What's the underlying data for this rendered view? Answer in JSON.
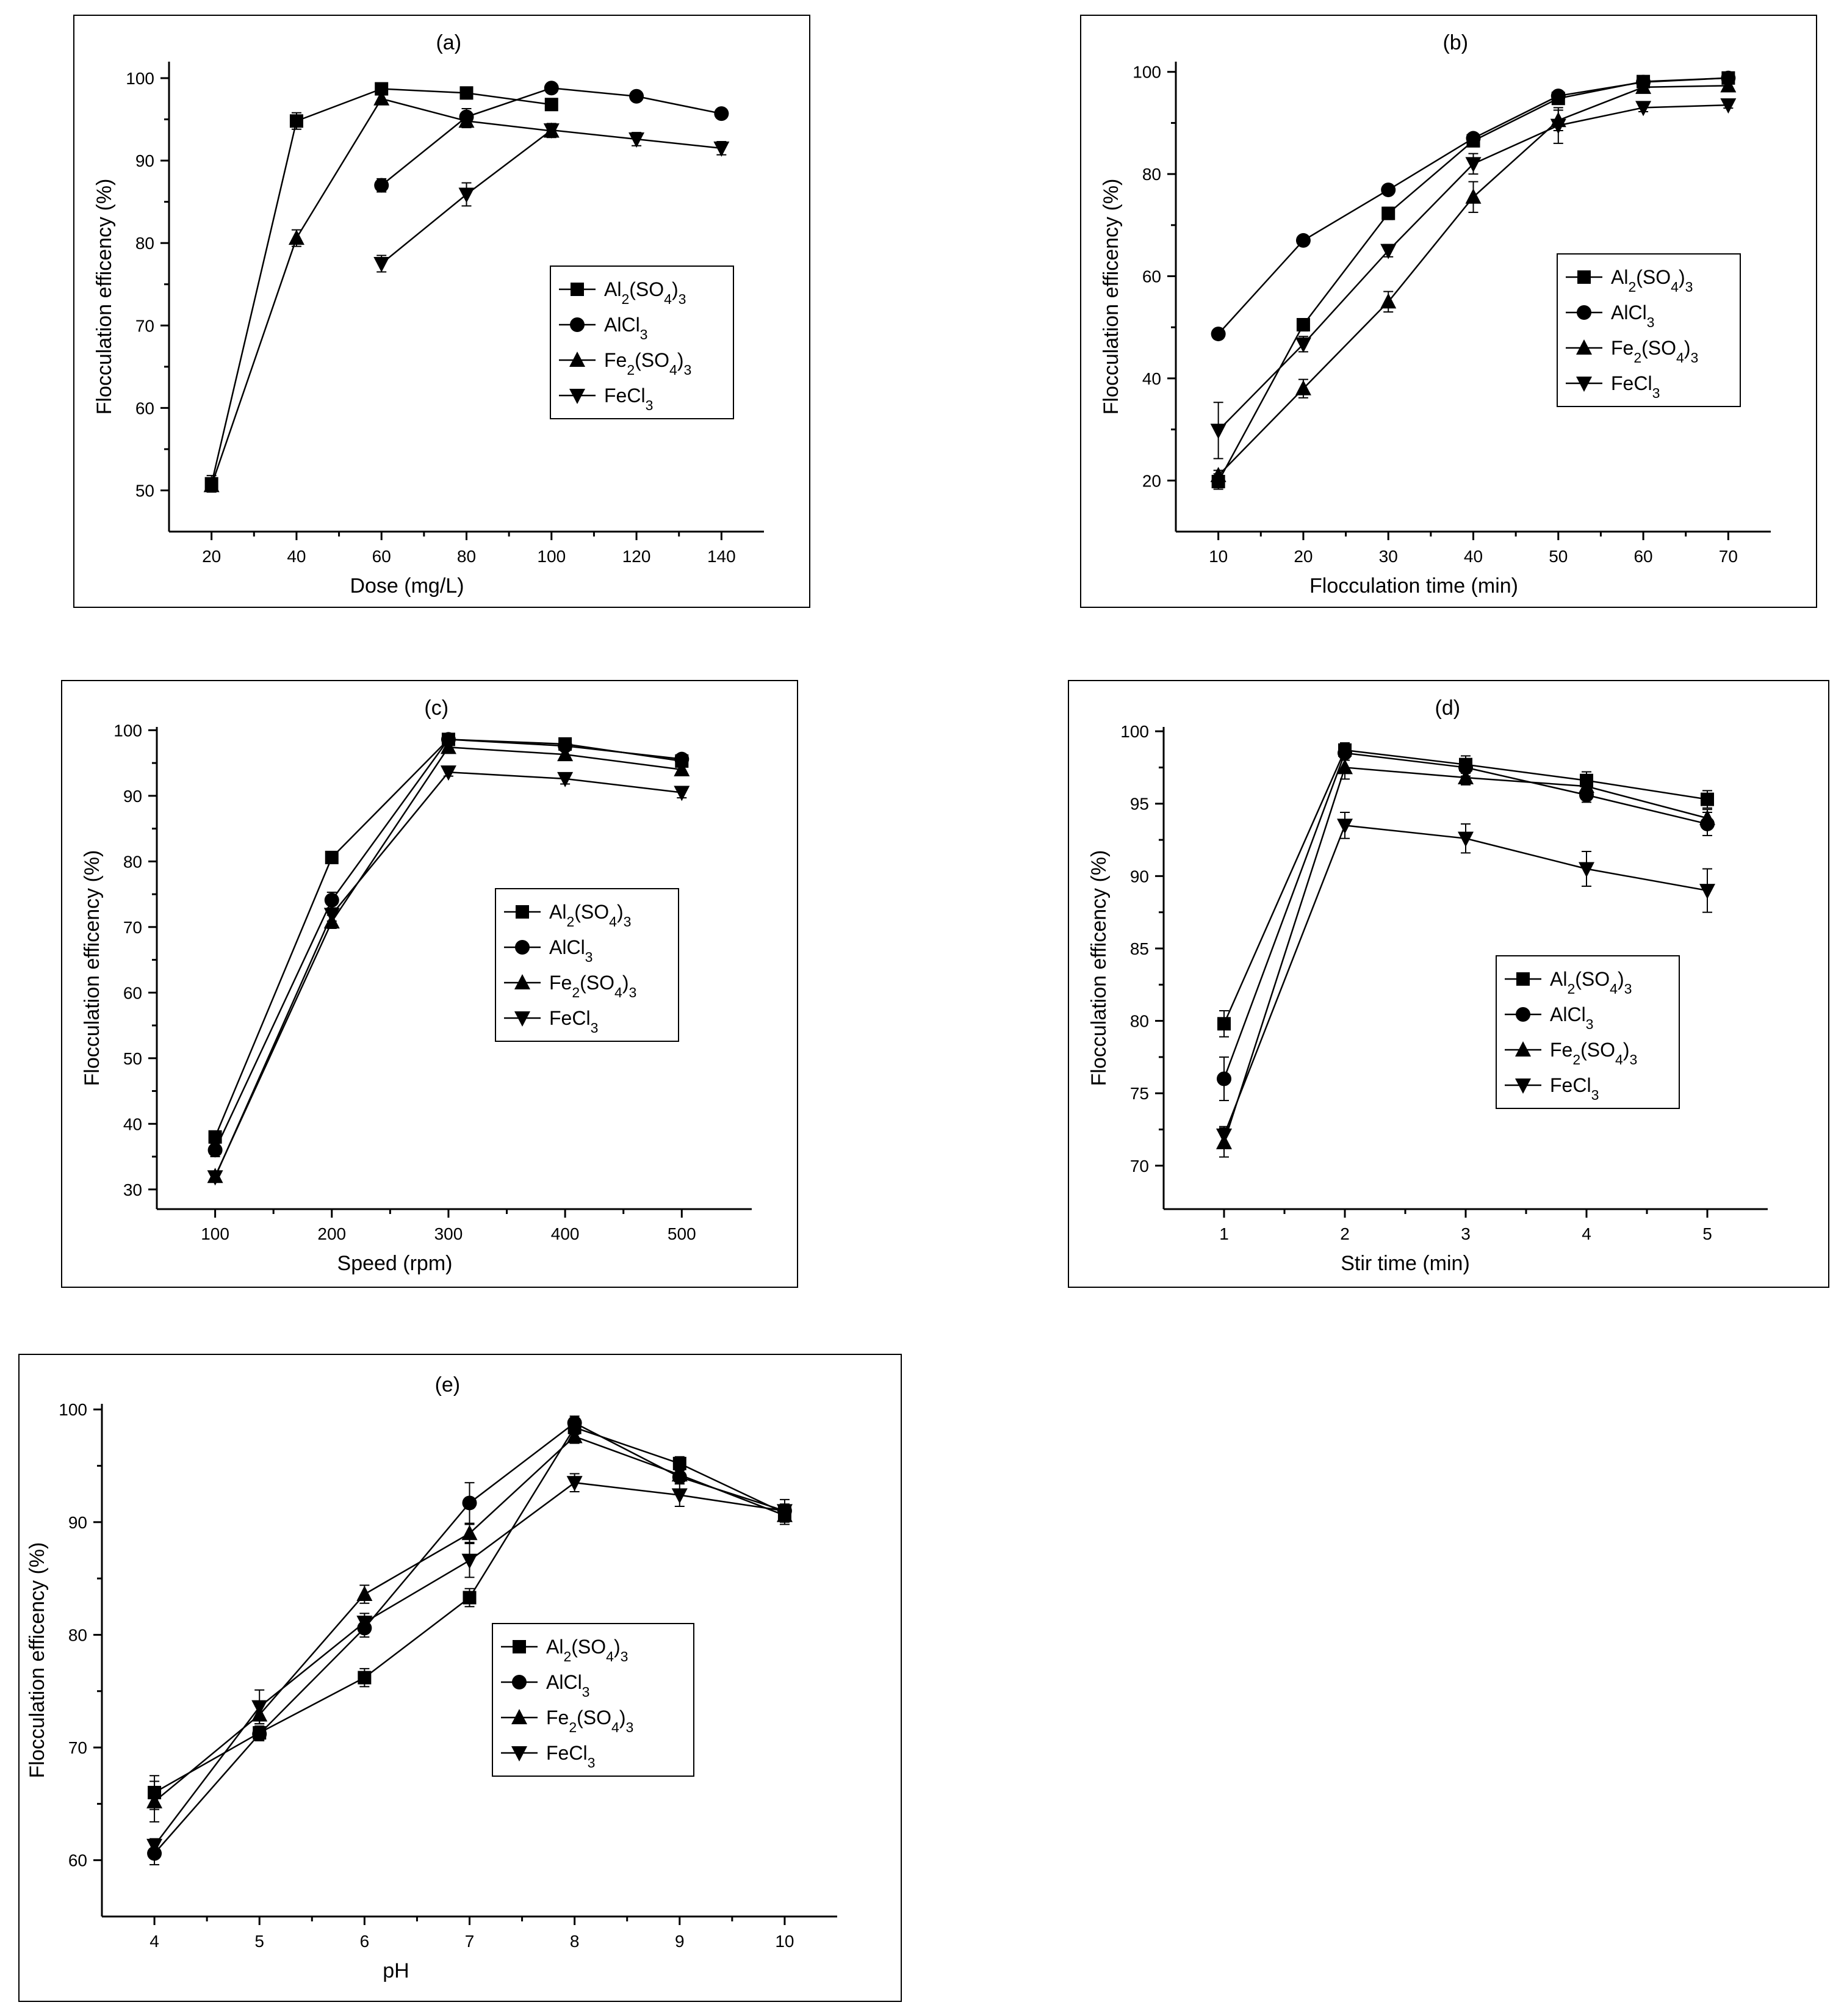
{
  "legend_labels": [
    {
      "main": "Al",
      "sub1": "2",
      "mid": "(SO",
      "sub2": "4",
      "mid2": ")",
      "sub3": "3"
    },
    {
      "main": "AlCl",
      "sub1": "3",
      "mid": "",
      "sub2": "",
      "mid2": "",
      "sub3": ""
    },
    {
      "main": "Fe",
      "sub1": "2",
      "mid": "(SO",
      "sub2": "4",
      "mid2": ")",
      "sub3": "3"
    },
    {
      "main": "FeCl",
      "sub1": "3",
      "mid": "",
      "sub2": "",
      "mid2": "",
      "sub3": ""
    }
  ],
  "chart_data": [
    {
      "id": "a",
      "type": "line",
      "title": "(a)",
      "xlabel": "Dose (mg/L)",
      "ylabel": "Flocculation efficency (%)",
      "xlim": [
        10,
        150
      ],
      "ylim": [
        45,
        102
      ],
      "xticks": [
        20,
        40,
        60,
        80,
        100,
        120,
        140
      ],
      "yticks": [
        50,
        60,
        70,
        80,
        90,
        100
      ],
      "legend_position": "center-right",
      "series": [
        {
          "name": "Al2(SO4)3",
          "marker": "square",
          "x": [
            20,
            40,
            60,
            80,
            100
          ],
          "y": [
            50.8,
            94.8,
            98.7,
            98.2,
            96.8
          ],
          "err": [
            1.0,
            1.0,
            0.5,
            0.4,
            0.5
          ]
        },
        {
          "name": "AlCl3",
          "marker": "circle",
          "x": [
            60,
            80,
            100,
            120,
            140
          ],
          "y": [
            87.0,
            95.3,
            98.8,
            97.8,
            95.7
          ],
          "err": [
            0.8,
            1.0,
            0.5,
            0.5,
            0.4
          ]
        },
        {
          "name": "Fe2(SO4)3",
          "marker": "triangle-up",
          "x": [
            20,
            40,
            60,
            80,
            100
          ],
          "y": [
            50.6,
            80.6,
            97.5,
            94.8,
            93.6
          ],
          "err": [
            0.8,
            1.0,
            0.6,
            0.8,
            0.8
          ]
        },
        {
          "name": "FeCl3",
          "marker": "triangle-down",
          "x": [
            60,
            80,
            100,
            120,
            140
          ],
          "y": [
            77.5,
            85.9,
            93.7,
            92.6,
            91.5
          ],
          "err": [
            1.0,
            1.4,
            0.8,
            0.8,
            0.8
          ]
        }
      ]
    },
    {
      "id": "b",
      "type": "line",
      "title": "(b)",
      "xlabel": "Flocculation time (min)",
      "ylabel": "Flocculation efficency (%)",
      "xlim": [
        5,
        75
      ],
      "ylim": [
        10,
        102
      ],
      "xticks": [
        10,
        20,
        30,
        40,
        50,
        60,
        70
      ],
      "yticks": [
        20,
        40,
        60,
        80,
        100
      ],
      "legend_position": "center-right",
      "series": [
        {
          "name": "Al2(SO4)3",
          "marker": "square",
          "x": [
            10,
            20,
            30,
            40,
            50,
            60,
            70
          ],
          "y": [
            19.8,
            50.5,
            72.3,
            86.5,
            94.8,
            98.1,
            98.8
          ],
          "err": [
            1.5,
            1.2,
            1.2,
            0.8,
            0.6,
            0.6,
            0.5
          ]
        },
        {
          "name": "AlCl3",
          "marker": "circle",
          "x": [
            10,
            20,
            30,
            40,
            50,
            60,
            70
          ],
          "y": [
            48.7,
            67.0,
            76.9,
            87.0,
            95.3,
            98.0,
            98.8
          ],
          "err": [
            0.5,
            0.8,
            0.6,
            0.6,
            0.5,
            0.5,
            0.5
          ]
        },
        {
          "name": "Fe2(SO4)3",
          "marker": "triangle-up",
          "x": [
            10,
            20,
            30,
            40,
            50,
            60,
            70
          ],
          "y": [
            21.0,
            38.0,
            55.0,
            75.5,
            90.5,
            97.0,
            97.3
          ],
          "err": [
            1.0,
            1.8,
            2.0,
            3.0,
            2.0,
            1.0,
            0.8
          ]
        },
        {
          "name": "FeCl3",
          "marker": "triangle-down",
          "x": [
            10,
            20,
            30,
            40,
            50,
            60,
            70
          ],
          "y": [
            29.8,
            46.7,
            65.0,
            82.0,
            89.5,
            93.0,
            93.5
          ],
          "err": [
            5.5,
            1.5,
            1.2,
            2.0,
            3.5,
            0.8,
            0.6
          ]
        }
      ]
    },
    {
      "id": "c",
      "type": "line",
      "title": "(c)",
      "xlabel": "Speed (rpm)",
      "ylabel": "Flocculation efficency (%)",
      "xlim": [
        50,
        560
      ],
      "ylim": [
        27,
        100.5
      ],
      "xticks": [
        100,
        200,
        300,
        400,
        500
      ],
      "yticks": [
        30,
        40,
        50,
        60,
        70,
        80,
        90,
        100
      ],
      "legend_position": "center-right",
      "series": [
        {
          "name": "Al2(SO4)3",
          "marker": "square",
          "x": [
            100,
            200,
            300,
            400,
            500
          ],
          "y": [
            38.0,
            80.6,
            98.6,
            97.9,
            95.3
          ],
          "err": [
            0.8,
            0.8,
            0.5,
            0.5,
            0.6
          ]
        },
        {
          "name": "AlCl3",
          "marker": "circle",
          "x": [
            100,
            200,
            300,
            400,
            500
          ],
          "y": [
            36.0,
            74.1,
            98.6,
            97.6,
            95.6
          ],
          "err": [
            1.0,
            1.2,
            0.5,
            0.5,
            0.5
          ]
        },
        {
          "name": "Fe2(SO4)3",
          "marker": "triangle-up",
          "x": [
            100,
            200,
            300,
            400,
            500
          ],
          "y": [
            32.0,
            70.8,
            97.4,
            96.3,
            94.0
          ],
          "err": [
            0.8,
            1.0,
            0.6,
            0.6,
            0.8
          ]
        },
        {
          "name": "FeCl3",
          "marker": "triangle-down",
          "x": [
            100,
            200,
            300,
            400,
            500
          ],
          "y": [
            31.9,
            71.9,
            93.6,
            92.6,
            90.5
          ],
          "err": [
            0.8,
            1.0,
            0.6,
            0.8,
            0.8
          ]
        }
      ]
    },
    {
      "id": "d",
      "type": "line",
      "title": "(d)",
      "xlabel": "Stir time (min)",
      "ylabel": "Flocculation efficency (%)",
      "xlim": [
        0.5,
        5.5
      ],
      "ylim": [
        67,
        100.3
      ],
      "xticks": [
        1,
        2,
        3,
        4,
        5
      ],
      "yticks": [
        70,
        75,
        80,
        85,
        90,
        95,
        100
      ],
      "legend_position": "lower-center",
      "series": [
        {
          "name": "Al2(SO4)3",
          "marker": "square",
          "x": [
            1,
            2,
            3,
            4,
            5
          ],
          "y": [
            79.8,
            98.7,
            97.7,
            96.6,
            95.3
          ],
          "err": [
            0.9,
            0.5,
            0.6,
            0.6,
            0.6
          ]
        },
        {
          "name": "AlCl3",
          "marker": "circle",
          "x": [
            1,
            2,
            3,
            4,
            5
          ],
          "y": [
            76.0,
            98.5,
            97.5,
            95.6,
            93.6
          ],
          "err": [
            1.5,
            0.5,
            0.6,
            0.5,
            0.8
          ]
        },
        {
          "name": "Fe2(SO4)3",
          "marker": "triangle-up",
          "x": [
            1,
            2,
            3,
            4,
            5
          ],
          "y": [
            71.6,
            97.5,
            96.8,
            96.2,
            94.0
          ],
          "err": [
            1.0,
            0.8,
            0.5,
            0.5,
            0.6
          ]
        },
        {
          "name": "FeCl3",
          "marker": "triangle-down",
          "x": [
            1,
            2,
            3,
            4,
            5
          ],
          "y": [
            72.1,
            93.5,
            92.6,
            90.5,
            89.0
          ],
          "err": [
            0.6,
            0.9,
            1.0,
            1.2,
            1.5
          ]
        }
      ]
    },
    {
      "id": "e",
      "type": "line",
      "title": "(e)",
      "xlabel": "pH",
      "ylabel": "Flocculation efficency (%)",
      "xlim": [
        3.5,
        10.5
      ],
      "ylim": [
        55,
        100.5
      ],
      "xticks": [
        4,
        5,
        6,
        7,
        8,
        9,
        10
      ],
      "yticks": [
        60,
        70,
        80,
        90,
        100
      ],
      "legend_position": "lower-right",
      "series": [
        {
          "name": "Al2(SO4)3",
          "marker": "square",
          "x": [
            4,
            5,
            6,
            7,
            8,
            9,
            10
          ],
          "y": [
            66.0,
            71.3,
            76.2,
            83.3,
            98.4,
            95.2,
            90.8
          ],
          "err": [
            1.5,
            0.6,
            0.8,
            0.8,
            0.6,
            0.6,
            0.6
          ]
        },
        {
          "name": "AlCl3",
          "marker": "circle",
          "x": [
            4,
            5,
            6,
            7,
            8,
            9,
            10
          ],
          "y": [
            60.6,
            71.2,
            80.6,
            91.7,
            98.8,
            94.0,
            91.0
          ],
          "err": [
            1.0,
            0.6,
            0.8,
            1.8,
            0.6,
            0.6,
            0.6
          ]
        },
        {
          "name": "Fe2(SO4)3",
          "marker": "triangle-up",
          "x": [
            4,
            5,
            6,
            7,
            8,
            9,
            10
          ],
          "y": [
            65.2,
            72.9,
            83.6,
            89.0,
            97.6,
            94.2,
            90.6
          ],
          "err": [
            1.8,
            0.8,
            0.8,
            0.8,
            0.6,
            0.6,
            0.8
          ]
        },
        {
          "name": "FeCl3",
          "marker": "triangle-down",
          "x": [
            4,
            5,
            6,
            7,
            8,
            9,
            10
          ],
          "y": [
            61.3,
            73.6,
            81.1,
            86.6,
            93.5,
            92.4,
            91.0
          ],
          "err": [
            0.6,
            1.5,
            0.8,
            1.5,
            0.8,
            1.0,
            1.0
          ]
        }
      ]
    }
  ]
}
